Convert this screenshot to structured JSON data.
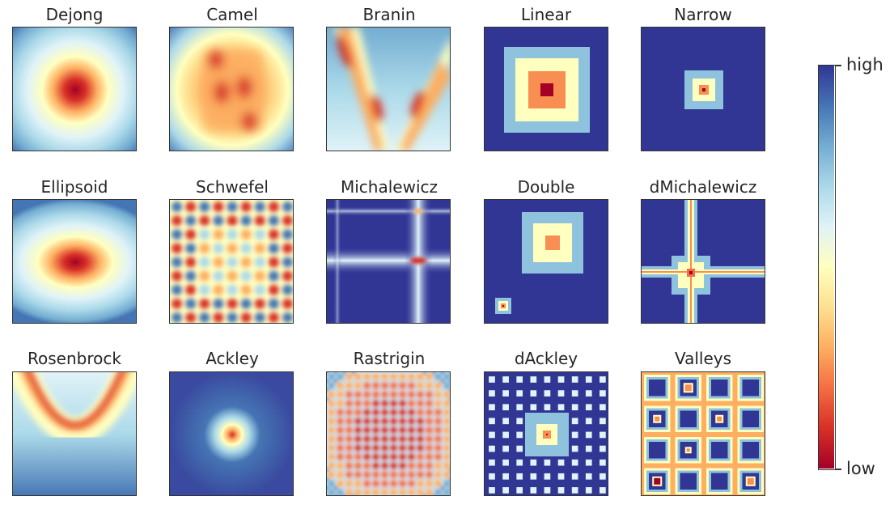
{
  "colors": {
    "low": "#a50026",
    "mid": "#ffffbf",
    "high": "#313695",
    "outline": "#333333",
    "palette": [
      "#a50026",
      "#d73027",
      "#f46d43",
      "#fdae61",
      "#fee090",
      "#ffffbf",
      "#e0f3f8",
      "#abd9e9",
      "#74add1",
      "#4575b4",
      "#313695"
    ]
  },
  "colorbar": {
    "high_label": "high",
    "low_label": "low",
    "colormap": "RdYlBu"
  },
  "chart_data": {
    "type": "heatmap",
    "description_grid": "3 rows x 5 columns of 2D test-function landscapes",
    "panels": [
      {
        "title": "Dejong"
      },
      {
        "title": "Camel"
      },
      {
        "title": "Branin"
      },
      {
        "title": "Linear"
      },
      {
        "title": "Narrow"
      },
      {
        "title": "Ellipsoid"
      },
      {
        "title": "Schwefel"
      },
      {
        "title": "Michalewicz"
      },
      {
        "title": "Double"
      },
      {
        "title": "dMichalewicz"
      },
      {
        "title": "Rosenbrock"
      },
      {
        "title": "Ackley"
      },
      {
        "title": "Rastrigin"
      },
      {
        "title": "dAckley"
      },
      {
        "title": "Valleys"
      }
    ]
  }
}
